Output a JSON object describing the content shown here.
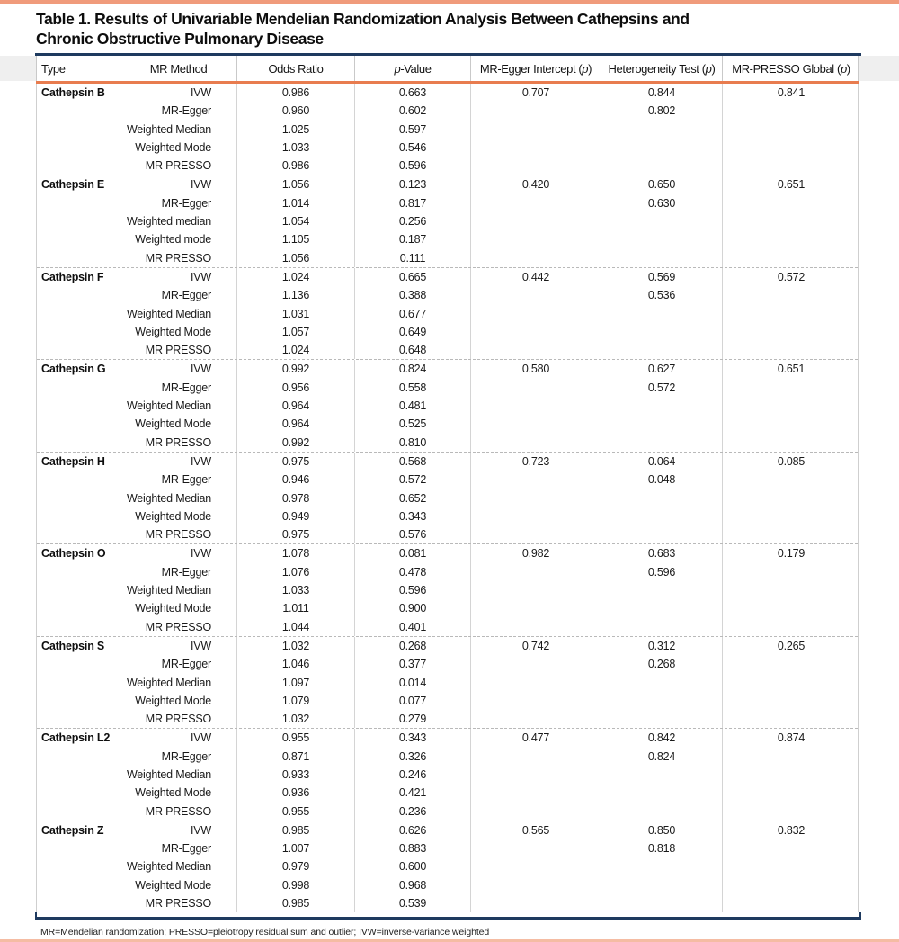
{
  "colors": {
    "top_strip": "#F09B7B",
    "bottom_strip": "#F5BCA3",
    "navy_rule": "#1E3A5F",
    "orange_rule": "#E87C4F",
    "grid_gray": "#c9c9c9"
  },
  "title": {
    "line1": "Table 1. Results of Univariable Mendelian Randomization Analysis Between Cathepsins and",
    "line2": "Chronic Obstructive Pulmonary Disease"
  },
  "table": {
    "columns": [
      "Type",
      "MR Method",
      "Odds Ratio",
      "p-Value",
      "MR-Egger Intercept (p)",
      "Heterogeneity Test (p)",
      "MR-PRESSO Global (p)"
    ],
    "groups": [
      {
        "type": "Cathepsin B",
        "rows": [
          {
            "method": "IVW",
            "or": "0.986",
            "p": "0.663",
            "egger": "0.707",
            "het": "0.844",
            "presso": "0.841"
          },
          {
            "method": "MR-Egger",
            "or": "0.960",
            "p": "0.602",
            "egger": "",
            "het": "0.802",
            "presso": ""
          },
          {
            "method": "Weighted Median",
            "or": "1.025",
            "p": "0.597",
            "egger": "",
            "het": "",
            "presso": ""
          },
          {
            "method": "Weighted Mode",
            "or": "1.033",
            "p": "0.546",
            "egger": "",
            "het": "",
            "presso": ""
          },
          {
            "method": "MR PRESSO",
            "or": "0.986",
            "p": "0.596",
            "egger": "",
            "het": "",
            "presso": ""
          }
        ]
      },
      {
        "type": "Cathepsin E",
        "rows": [
          {
            "method": "IVW",
            "or": "1.056",
            "p": "0.123",
            "egger": "0.420",
            "het": "0.650",
            "presso": "0.651"
          },
          {
            "method": "MR-Egger",
            "or": "1.014",
            "p": "0.817",
            "egger": "",
            "het": "0.630",
            "presso": ""
          },
          {
            "method": "Weighted median",
            "or": "1.054",
            "p": "0.256",
            "egger": "",
            "het": "",
            "presso": ""
          },
          {
            "method": "Weighted mode",
            "or": "1.105",
            "p": "0.187",
            "egger": "",
            "het": "",
            "presso": ""
          },
          {
            "method": "MR PRESSO",
            "or": "1.056",
            "p": "0.111",
            "egger": "",
            "het": "",
            "presso": ""
          }
        ]
      },
      {
        "type": "Cathepsin F",
        "rows": [
          {
            "method": "IVW",
            "or": "1.024",
            "p": "0.665",
            "egger": "0.442",
            "het": "0.569",
            "presso": "0.572"
          },
          {
            "method": "MR-Egger",
            "or": "1.136",
            "p": "0.388",
            "egger": "",
            "het": "0.536",
            "presso": ""
          },
          {
            "method": "Weighted Median",
            "or": "1.031",
            "p": "0.677",
            "egger": "",
            "het": "",
            "presso": ""
          },
          {
            "method": "Weighted Mode",
            "or": "1.057",
            "p": "0.649",
            "egger": "",
            "het": "",
            "presso": ""
          },
          {
            "method": "MR PRESSO",
            "or": "1.024",
            "p": "0.648",
            "egger": "",
            "het": "",
            "presso": ""
          }
        ]
      },
      {
        "type": "Cathepsin G",
        "rows": [
          {
            "method": "IVW",
            "or": "0.992",
            "p": "0.824",
            "egger": "0.580",
            "het": "0.627",
            "presso": "0.651"
          },
          {
            "method": "MR-Egger",
            "or": "0.956",
            "p": "0.558",
            "egger": "",
            "het": "0.572",
            "presso": ""
          },
          {
            "method": "Weighted Median",
            "or": "0.964",
            "p": "0.481",
            "egger": "",
            "het": "",
            "presso": ""
          },
          {
            "method": "Weighted Mode",
            "or": "0.964",
            "p": "0.525",
            "egger": "",
            "het": "",
            "presso": ""
          },
          {
            "method": "MR PRESSO",
            "or": "0.992",
            "p": "0.810",
            "egger": "",
            "het": "",
            "presso": ""
          }
        ]
      },
      {
        "type": "Cathepsin H",
        "rows": [
          {
            "method": "IVW",
            "or": "0.975",
            "p": "0.568",
            "egger": "0.723",
            "het": "0.064",
            "presso": "0.085"
          },
          {
            "method": "MR-Egger",
            "or": "0.946",
            "p": "0.572",
            "egger": "",
            "het": "0.048",
            "presso": ""
          },
          {
            "method": "Weighted Median",
            "or": "0.978",
            "p": "0.652",
            "egger": "",
            "het": "",
            "presso": ""
          },
          {
            "method": "Weighted Mode",
            "or": "0.949",
            "p": "0.343",
            "egger": "",
            "het": "",
            "presso": ""
          },
          {
            "method": "MR PRESSO",
            "or": "0.975",
            "p": "0.576",
            "egger": "",
            "het": "",
            "presso": ""
          }
        ]
      },
      {
        "type": "Cathepsin O",
        "rows": [
          {
            "method": "IVW",
            "or": "1.078",
            "p": "0.081",
            "egger": "0.982",
            "het": "0.683",
            "presso": "0.179"
          },
          {
            "method": "MR-Egger",
            "or": "1.076",
            "p": "0.478",
            "egger": "",
            "het": "0.596",
            "presso": ""
          },
          {
            "method": "Weighted Median",
            "or": "1.033",
            "p": "0.596",
            "egger": "",
            "het": "",
            "presso": ""
          },
          {
            "method": "Weighted Mode",
            "or": "1.011",
            "p": "0.900",
            "egger": "",
            "het": "",
            "presso": ""
          },
          {
            "method": "MR PRESSO",
            "or": "1.044",
            "p": "0.401",
            "egger": "",
            "het": "",
            "presso": ""
          }
        ]
      },
      {
        "type": "Cathepsin S",
        "rows": [
          {
            "method": "IVW",
            "or": "1.032",
            "p": "0.268",
            "egger": "0.742",
            "het": "0.312",
            "presso": "0.265"
          },
          {
            "method": "MR-Egger",
            "or": "1.046",
            "p": "0.377",
            "egger": "",
            "het": "0.268",
            "presso": ""
          },
          {
            "method": "Weighted Median",
            "or": "1.097",
            "p": "0.014",
            "egger": "",
            "het": "",
            "presso": ""
          },
          {
            "method": "Weighted Mode",
            "or": "1.079",
            "p": "0.077",
            "egger": "",
            "het": "",
            "presso": ""
          },
          {
            "method": "MR PRESSO",
            "or": "1.032",
            "p": "0.279",
            "egger": "",
            "het": "",
            "presso": ""
          }
        ]
      },
      {
        "type": "Cathepsin L2",
        "rows": [
          {
            "method": "IVW",
            "or": "0.955",
            "p": "0.343",
            "egger": "0.477",
            "het": "0.842",
            "presso": "0.874"
          },
          {
            "method": "MR-Egger",
            "or": "0.871",
            "p": "0.326",
            "egger": "",
            "het": "0.824",
            "presso": ""
          },
          {
            "method": "Weighted Median",
            "or": "0.933",
            "p": "0.246",
            "egger": "",
            "het": "",
            "presso": ""
          },
          {
            "method": "Weighted Mode",
            "or": "0.936",
            "p": "0.421",
            "egger": "",
            "het": "",
            "presso": ""
          },
          {
            "method": "MR PRESSO",
            "or": "0.955",
            "p": "0.236",
            "egger": "",
            "het": "",
            "presso": ""
          }
        ]
      },
      {
        "type": "Cathepsin Z",
        "rows": [
          {
            "method": "IVW",
            "or": "0.985",
            "p": "0.626",
            "egger": "0.565",
            "het": "0.850",
            "presso": "0.832"
          },
          {
            "method": "MR-Egger",
            "or": "1.007",
            "p": "0.883",
            "egger": "",
            "het": "0.818",
            "presso": ""
          },
          {
            "method": "Weighted Median",
            "or": "0.979",
            "p": "0.600",
            "egger": "",
            "het": "",
            "presso": ""
          },
          {
            "method": "Weighted Mode",
            "or": "0.998",
            "p": "0.968",
            "egger": "",
            "het": "",
            "presso": ""
          },
          {
            "method": "MR PRESSO",
            "or": "0.985",
            "p": "0.539",
            "egger": "",
            "het": "",
            "presso": ""
          }
        ]
      }
    ]
  },
  "footnote": "MR=Mendelian randomization; PRESSO=pleiotropy residual sum and outlier; IVW=inverse-variance weighted"
}
